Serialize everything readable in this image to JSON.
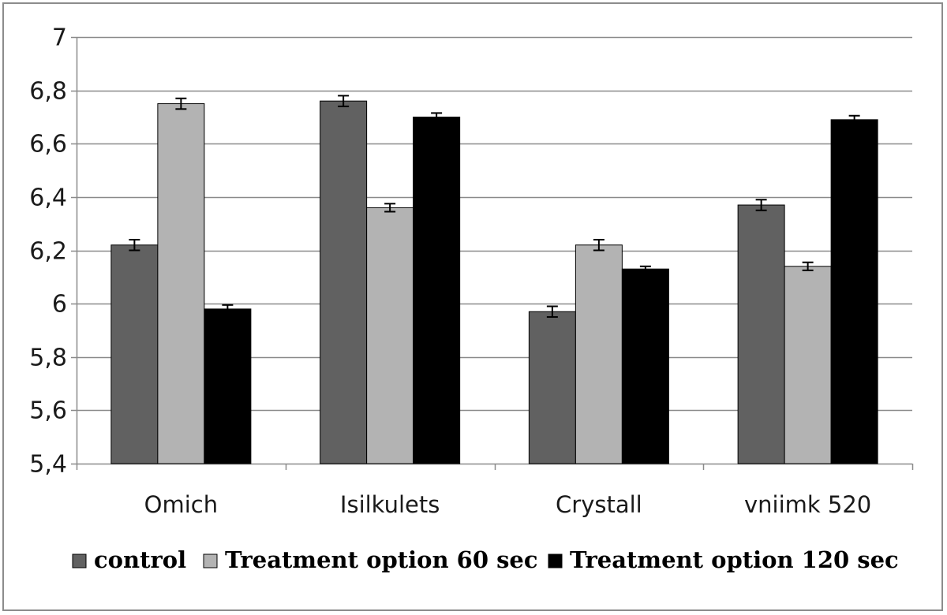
{
  "chart_data": {
    "type": "bar",
    "title": "",
    "xlabel": "",
    "ylabel": "",
    "ylim": [
      5.4,
      7.0
    ],
    "ytick_step": 0.2,
    "yticks": [
      "5,4",
      "5,6",
      "5,8",
      "6",
      "6,2",
      "6,4",
      "6,6",
      "6,8",
      "7"
    ],
    "grid": true,
    "legend_position": "bottom",
    "categories": [
      "Omich",
      "Isilkulets",
      "Crystall",
      "vniimk 520"
    ],
    "series": [
      {
        "name": "control",
        "color": "#616161",
        "values": [
          6.22,
          6.76,
          5.97,
          6.37
        ],
        "errors": [
          0.02,
          0.02,
          0.02,
          0.02
        ]
      },
      {
        "name": "Treatment option 60 sec",
        "color": "#b3b3b3",
        "values": [
          6.75,
          6.36,
          6.22,
          6.14
        ],
        "errors": [
          0.02,
          0.015,
          0.02,
          0.015
        ]
      },
      {
        "name": "Treatment option 120 sec",
        "color": "#000000",
        "values": [
          5.98,
          6.7,
          6.13,
          6.69
        ],
        "errors": [
          0.015,
          0.015,
          0.01,
          0.015
        ]
      }
    ]
  }
}
